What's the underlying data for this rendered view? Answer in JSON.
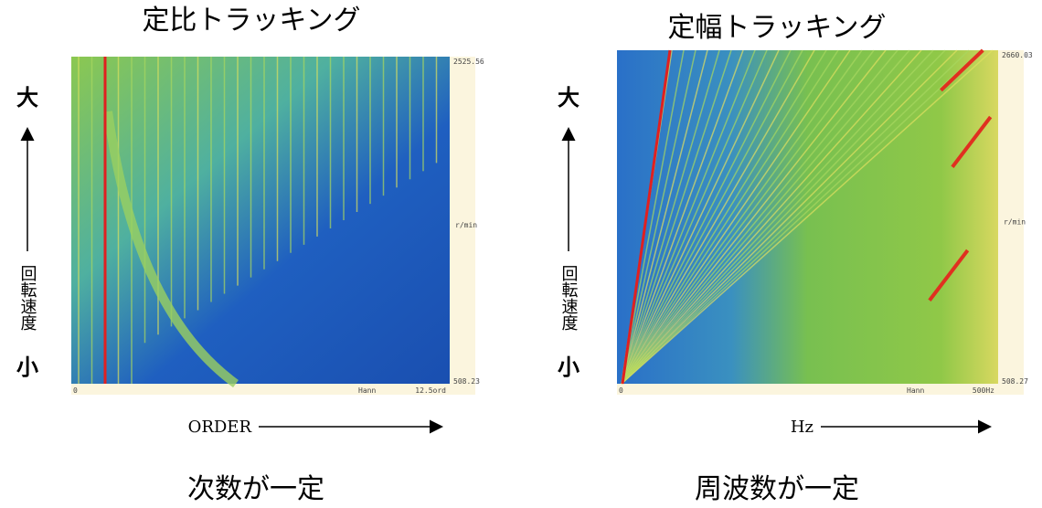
{
  "panels": [
    {
      "title": "定比トラッキング",
      "high": "大",
      "axis_label": "回転速度",
      "low": "小",
      "top_value": "2525.56",
      "unit": "r/min",
      "bottom_value": "508.23",
      "x_start": "0",
      "window": "Hann",
      "x_end": "12.5ord",
      "x_axis": "ORDER",
      "caption": "次数が一定"
    },
    {
      "title": "定幅トラッキング",
      "high": "大",
      "axis_label": "回転速度",
      "low": "小",
      "top_value": "2660.03",
      "unit": "r/min",
      "bottom_value": "508.27",
      "x_start": "0",
      "window": "Hann",
      "x_end": "500Hz",
      "x_axis": "Hz",
      "caption": "周波数が一定"
    }
  ]
}
